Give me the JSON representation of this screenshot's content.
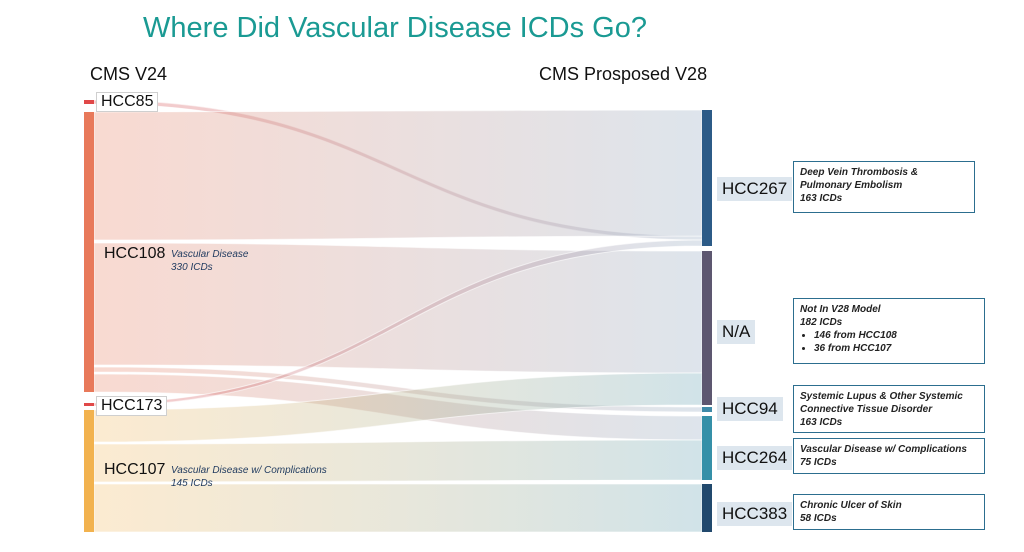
{
  "title": "Where Did Vascular Disease ICDs Go?",
  "left_header": "CMS V24",
  "right_header": "CMS Prosposed V28",
  "colors": {
    "hcc108": "#e8795a",
    "hcc107": "#f2b24e",
    "hcc85": "#e04848",
    "hcc173": "#e04848",
    "hcc267": "#2c5b87",
    "na": "#5d5770",
    "hcc94": "#3e8aa8",
    "hcc264": "#3590a8",
    "hcc383": "#21496d",
    "title": "#1a9a93"
  },
  "sources": [
    {
      "id": "hcc85",
      "label": "HCC85"
    },
    {
      "id": "hcc108",
      "label": "HCC108",
      "note_line1": "Vascular Disease",
      "note_line2": "330 ICDs"
    },
    {
      "id": "hcc173",
      "label": "HCC173"
    },
    {
      "id": "hcc107",
      "label": "HCC107",
      "note_line1": "Vascular Disease w/ Complications",
      "note_line2": "145 ICDs"
    }
  ],
  "targets": [
    {
      "id": "hcc267",
      "label": "HCC267",
      "box_line1": "Deep Vein Thrombosis &",
      "box_line2": "Pulmonary Embolism",
      "box_line3": "163 ICDs"
    },
    {
      "id": "na",
      "label": "N/A",
      "box_line1": "Not In V28 Model",
      "box_line2": "182 ICDs",
      "bullet1": "146 from HCC108",
      "bullet2": "36 from HCC107"
    },
    {
      "id": "hcc94",
      "label": "HCC94",
      "box_line1": "Systemic Lupus & Other Systemic",
      "box_line2": "Connective Tissue Disorder",
      "box_line3": "163 ICDs"
    },
    {
      "id": "hcc264",
      "label": "HCC264",
      "box_line1": "Vascular Disease w/ Complications",
      "box_line2": "75 ICDs"
    },
    {
      "id": "hcc383",
      "label": "HCC383",
      "box_line1": "Chronic Ulcer of Skin",
      "box_line2": "58 ICDs"
    }
  ],
  "flows": [
    {
      "from": "hcc85",
      "to": "hcc267"
    },
    {
      "from": "hcc108",
      "to": "hcc267"
    },
    {
      "from": "hcc108",
      "to": "na"
    },
    {
      "from": "hcc108",
      "to": "hcc94"
    },
    {
      "from": "hcc108",
      "to": "hcc264"
    },
    {
      "from": "hcc173",
      "to": "hcc267"
    },
    {
      "from": "hcc107",
      "to": "na"
    },
    {
      "from": "hcc107",
      "to": "hcc264"
    },
    {
      "from": "hcc107",
      "to": "hcc383"
    }
  ]
}
